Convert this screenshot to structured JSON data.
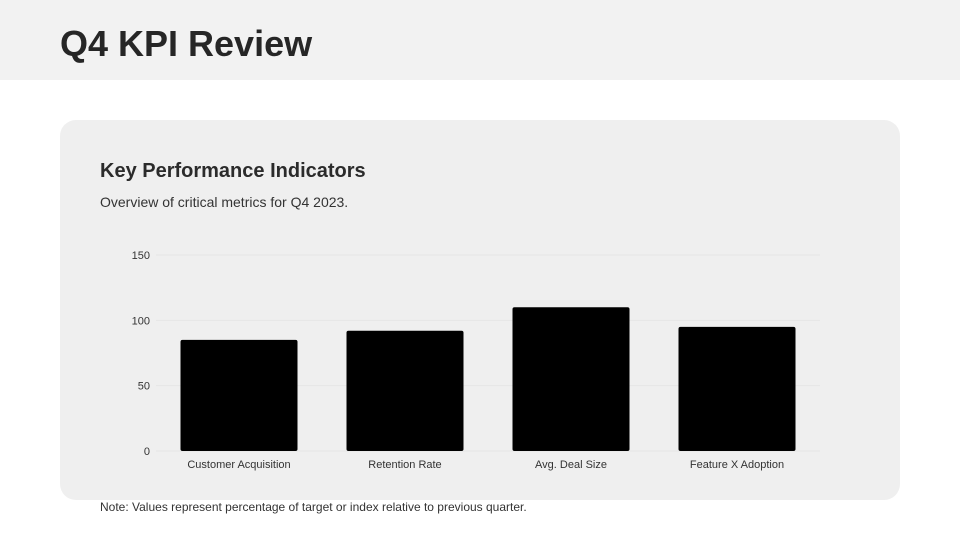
{
  "page": {
    "title": "Q4 KPI Review"
  },
  "card": {
    "title": "Key Performance Indicators",
    "subtitle": "Overview of critical metrics for Q4 2023."
  },
  "note": "Note: Values represent percentage of target or index relative to previous quarter.",
  "colors": {
    "header_band": "#f2f2f2",
    "card_background": "#efefef",
    "bar_fill": "#000000",
    "grid": "#e6e6e6"
  },
  "chart_data": {
    "type": "bar",
    "categories": [
      "Customer Acquisition",
      "Retention Rate",
      "Avg. Deal Size",
      "Feature X Adoption"
    ],
    "values": [
      85,
      92,
      110,
      95
    ],
    "ylim": [
      0,
      150
    ],
    "yticks": [
      0,
      50,
      100,
      150
    ],
    "ytick_labels": [
      "0",
      "50",
      "100",
      "150"
    ],
    "grid": true,
    "legend": "none"
  }
}
